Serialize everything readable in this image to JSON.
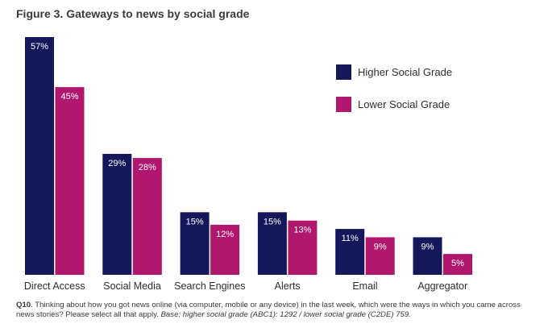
{
  "title": "Figure 3. Gateways to news by social grade",
  "colors": {
    "higher": "#14185a",
    "lower": "#b1176d"
  },
  "chart_data": {
    "type": "bar",
    "title": "Figure 3. Gateways to news by social grade",
    "categories": [
      "Direct Access",
      "Social Media",
      "Search Engines",
      "Alerts",
      "Email",
      "Aggregator"
    ],
    "series": [
      {
        "name": "Higher Social Grade",
        "values": [
          57,
          29,
          15,
          15,
          11,
          9
        ],
        "labels": [
          "57%",
          "29%",
          "15%",
          "15%",
          "11%",
          "9%"
        ]
      },
      {
        "name": "Lower Social Grade",
        "values": [
          45,
          28,
          12,
          13,
          9,
          5
        ],
        "labels": [
          "45%",
          "28%",
          "12%",
          "13%",
          "9%",
          "5%"
        ]
      }
    ],
    "ylim": [
      0,
      57
    ],
    "xlabel": "",
    "ylabel": "",
    "legend": "top-right",
    "grid": false
  },
  "footnote": {
    "q": "Q10",
    "text": ". Thinking about how you got news online (via computer, mobile or any device) in the last week, which were the ways in which you came across news stories? Please select all that apply. ",
    "base": "Base: higher social grade (ABC1): 1292 / lower social grade (C2DE) 759."
  }
}
